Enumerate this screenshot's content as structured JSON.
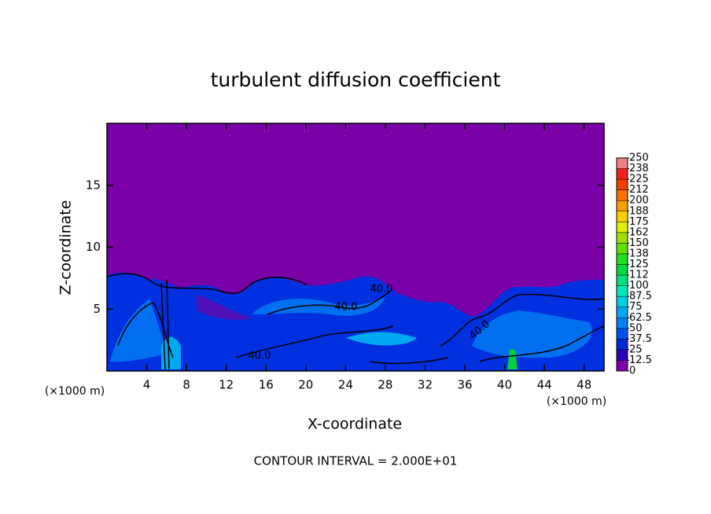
{
  "chart_data": {
    "type": "contour",
    "title": "turbulent diffusion coefficient",
    "xlabel": "X-coordinate",
    "ylabel": "Z-coordinate",
    "x_unit_left": "(×1000 m)",
    "x_unit_right": "(×1000 m)",
    "footer": "CONTOUR INTERVAL = 2.000E+01",
    "xlim": [
      0,
      50
    ],
    "xticks": [
      4,
      8,
      12,
      16,
      20,
      24,
      28,
      32,
      36,
      40,
      44,
      48
    ],
    "ylim": [
      0,
      20
    ],
    "yticks": [
      5,
      10,
      15
    ],
    "contour_labels": [
      "40.0",
      "40.0",
      "40.0",
      "40.0"
    ],
    "colorbar": {
      "ticks": [
        0,
        12.5,
        25,
        37.5,
        50,
        62.5,
        75,
        87.5,
        100,
        {
          "value": 112.5,
          "label": "112"
        },
        125,
        {
          "value": 137.5,
          "label": "138"
        },
        150,
        {
          "value": 162.5,
          "label": "162"
        },
        175,
        {
          "value": 187.5,
          "label": "188"
        },
        200,
        {
          "value": 212.5,
          "label": "212"
        },
        225,
        {
          "value": 237.5,
          "label": "238"
        },
        250
      ],
      "colors": [
        "#7a00a8",
        "#2a00b8",
        "#0028d8",
        "#0050f0",
        "#0080f8",
        "#00a8f0",
        "#00d0e0",
        "#00e8b8",
        "#00e080",
        "#00d840",
        "#20e020",
        "#60e000",
        "#a0e000",
        "#e0f000",
        "#f8d000",
        "#f8a000",
        "#f87000",
        "#f04000",
        "#f02020",
        "#f08080"
      ]
    }
  }
}
